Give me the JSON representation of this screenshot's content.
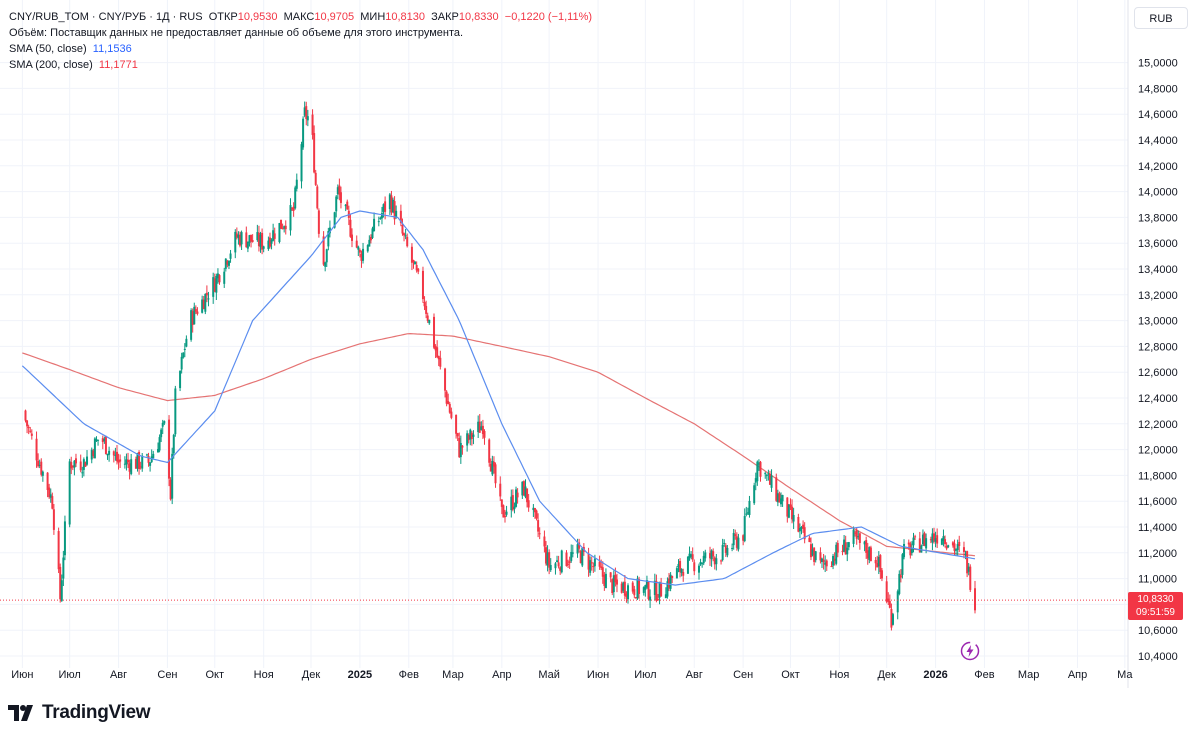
{
  "legend": {
    "symbol": "CNY/RUB_TOM · CNY/РУБ · 1Д · RUS",
    "open_label": "ОТКР",
    "open_value": "10,9530",
    "high_label": "МАКС",
    "high_value": "10,9705",
    "low_label": "МИН",
    "low_value": "10,8130",
    "close_label": "ЗАКР",
    "close_value": "10,8330",
    "change_value": "−0,1220 (−1,11%)",
    "volume_note": "Объём: Поставщик данных не предоставляет данные об объеме для этого инструмента.",
    "sma50_label": "SMA (50, close)",
    "sma50_value": "11,1536",
    "sma200_label": "SMA (200, close)",
    "sma200_value": "11,1771"
  },
  "currency_button": "RUB",
  "price_tag": {
    "price": "10,8330",
    "countdown": "09:51:59"
  },
  "brand": "TradingView",
  "colors": {
    "up": "#089981",
    "down": "#f23645",
    "sma50": "#5b8def",
    "sma200": "#e57373",
    "grid": "#f0f3fa",
    "axis_text": "#131722"
  },
  "chart_data": {
    "type": "candlestick",
    "title": "CNY/RUB_TOM · CNY/РУБ · 1Д · RUS",
    "ylim": [
      10.4,
      15.1
    ],
    "y_ticks": [
      "10,4000",
      "10,6000",
      "10,8000",
      "11,0000",
      "11,2000",
      "11,4000",
      "11,6000",
      "11,8000",
      "12,0000",
      "12,2000",
      "12,4000",
      "12,6000",
      "12,8000",
      "13,0000",
      "13,2000",
      "13,4000",
      "13,6000",
      "13,8000",
      "14,0000",
      "14,2000",
      "14,4000",
      "14,6000",
      "14,8000",
      "15,0000"
    ],
    "x_labels": [
      "Июн",
      "Июл",
      "Авг",
      "Сен",
      "Окт",
      "Ноя",
      "Дек",
      "2025",
      "Фев",
      "Мар",
      "Апр",
      "Май",
      "Июн",
      "Июл",
      "Авг",
      "Сен",
      "Окт",
      "Ноя",
      "Дек",
      "2026",
      "Фев",
      "Мар",
      "Апр",
      "Ма"
    ],
    "bold_x_labels": [
      "2025",
      "2026"
    ],
    "last_close": 10.833,
    "price_keypoints": [
      [
        "2024-06-01",
        12.3
      ],
      [
        "2024-06-20",
        11.6
      ],
      [
        "2024-06-25",
        10.85
      ],
      [
        "2024-07-01",
        11.9
      ],
      [
        "2024-07-10",
        11.9
      ],
      [
        "2024-07-20",
        12.1
      ],
      [
        "2024-08-01",
        11.9
      ],
      [
        "2024-08-20",
        11.9
      ],
      [
        "2024-08-31",
        12.2
      ],
      [
        "2024-09-03",
        11.65
      ],
      [
        "2024-09-06",
        12.4
      ],
      [
        "2024-09-15",
        13.0
      ],
      [
        "2024-10-01",
        13.3
      ],
      [
        "2024-10-15",
        13.65
      ],
      [
        "2024-11-01",
        13.6
      ],
      [
        "2024-11-20",
        13.85
      ],
      [
        "2024-11-27",
        14.6
      ],
      [
        "2024-12-01",
        14.55
      ],
      [
        "2024-12-08",
        13.4
      ],
      [
        "2024-12-18",
        14.0
      ],
      [
        "2025-01-01",
        13.5
      ],
      [
        "2025-01-20",
        13.95
      ],
      [
        "2025-02-10",
        13.2
      ],
      [
        "2025-02-25",
        12.4
      ],
      [
        "2025-03-05",
        12.0
      ],
      [
        "2025-03-20",
        12.2
      ],
      [
        "2025-04-01",
        11.5
      ],
      [
        "2025-04-15",
        11.7
      ],
      [
        "2025-05-01",
        11.1
      ],
      [
        "2025-05-20",
        11.2
      ],
      [
        "2025-06-10",
        10.95
      ],
      [
        "2025-07-10",
        10.9
      ],
      [
        "2025-07-25",
        11.1
      ],
      [
        "2025-08-20",
        11.2
      ],
      [
        "2025-09-01",
        11.35
      ],
      [
        "2025-09-10",
        11.9
      ],
      [
        "2025-09-25",
        11.6
      ],
      [
        "2025-10-10",
        11.3
      ],
      [
        "2025-10-20",
        11.1
      ],
      [
        "2025-11-10",
        11.3
      ],
      [
        "2025-11-25",
        11.15
      ],
      [
        "2025-12-04",
        10.7
      ],
      [
        "2025-12-12",
        11.2
      ],
      [
        "2025-12-25",
        11.3
      ],
      [
        "2026-01-05",
        11.35
      ],
      [
        "2026-01-20",
        11.15
      ],
      [
        "2026-01-26",
        10.833
      ]
    ],
    "sma50": [
      [
        "2024-06-01",
        12.65
      ],
      [
        "2024-07-10",
        12.2
      ],
      [
        "2024-08-15",
        11.95
      ],
      [
        "2024-09-01",
        11.9
      ],
      [
        "2024-10-01",
        12.3
      ],
      [
        "2024-10-25",
        13.0
      ],
      [
        "2024-12-01",
        13.5
      ],
      [
        "2024-12-20",
        13.8
      ],
      [
        "2025-01-01",
        13.85
      ],
      [
        "2025-01-25",
        13.8
      ],
      [
        "2025-02-10",
        13.55
      ],
      [
        "2025-03-05",
        13.0
      ],
      [
        "2025-04-01",
        12.2
      ],
      [
        "2025-04-25",
        11.6
      ],
      [
        "2025-05-25",
        11.2
      ],
      [
        "2025-06-20",
        11.0
      ],
      [
        "2025-07-20",
        10.95
      ],
      [
        "2025-08-20",
        11.0
      ],
      [
        "2025-09-20",
        11.2
      ],
      [
        "2025-10-15",
        11.35
      ],
      [
        "2025-11-15",
        11.4
      ],
      [
        "2025-12-10",
        11.25
      ],
      [
        "2026-01-26",
        11.1536
      ]
    ],
    "sma200": [
      [
        "2024-06-01",
        12.75
      ],
      [
        "2024-07-01",
        12.62
      ],
      [
        "2024-08-01",
        12.48
      ],
      [
        "2024-09-01",
        12.38
      ],
      [
        "2024-10-01",
        12.42
      ],
      [
        "2024-11-01",
        12.55
      ],
      [
        "2024-12-01",
        12.7
      ],
      [
        "2025-01-01",
        12.82
      ],
      [
        "2025-02-01",
        12.9
      ],
      [
        "2025-03-01",
        12.88
      ],
      [
        "2025-04-01",
        12.8
      ],
      [
        "2025-05-01",
        12.72
      ],
      [
        "2025-06-01",
        12.6
      ],
      [
        "2025-07-01",
        12.4
      ],
      [
        "2025-08-01",
        12.2
      ],
      [
        "2025-09-01",
        11.95
      ],
      [
        "2025-10-01",
        11.7
      ],
      [
        "2025-11-01",
        11.45
      ],
      [
        "2025-12-01",
        11.25
      ],
      [
        "2026-01-26",
        11.1771
      ]
    ]
  }
}
